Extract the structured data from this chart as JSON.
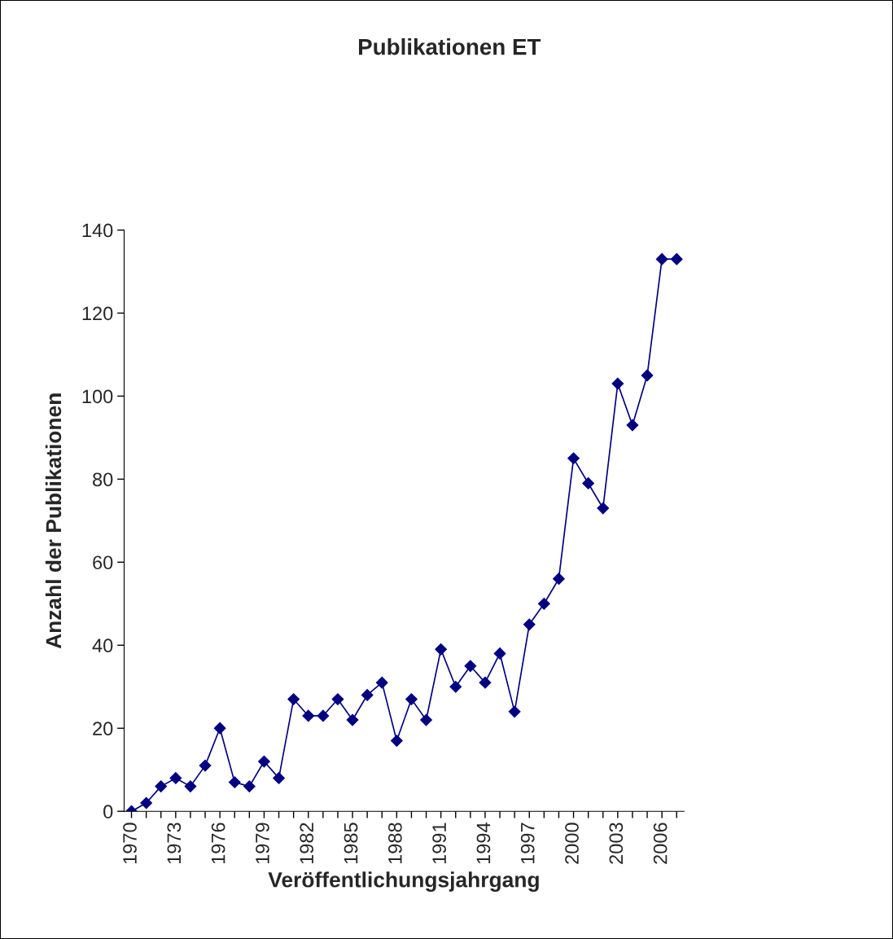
{
  "chart_data": {
    "type": "line",
    "title": "Publikationen ET",
    "xlabel": "Veröffentlichungsjahrgang",
    "ylabel": "Anzahl der Publikationen",
    "categories": [
      "1970",
      null,
      null,
      "1973",
      null,
      null,
      "1976",
      null,
      null,
      "1979",
      null,
      null,
      "1982",
      null,
      null,
      "1985",
      null,
      null,
      "1988",
      null,
      null,
      "1991",
      null,
      null,
      "1994",
      null,
      null,
      "1997",
      null,
      null,
      "2000",
      null,
      null,
      "2003",
      null,
      null,
      "2006",
      null
    ],
    "series": [
      {
        "color": "#000080",
        "values": [
          0,
          2,
          6,
          8,
          6,
          11,
          20,
          7,
          6,
          12,
          8,
          27,
          23,
          23,
          27,
          22,
          28,
          31,
          17,
          27,
          22,
          39,
          30,
          35,
          31,
          38,
          24,
          45,
          50,
          56,
          85,
          79,
          73,
          103,
          93,
          105,
          133,
          133
        ]
      }
    ],
    "ylim": [
      0,
      140
    ],
    "yticks": [
      0,
      20,
      40,
      60,
      80,
      100,
      120,
      140
    ],
    "grid": false,
    "marker": "diamond",
    "line_style": "solid"
  }
}
